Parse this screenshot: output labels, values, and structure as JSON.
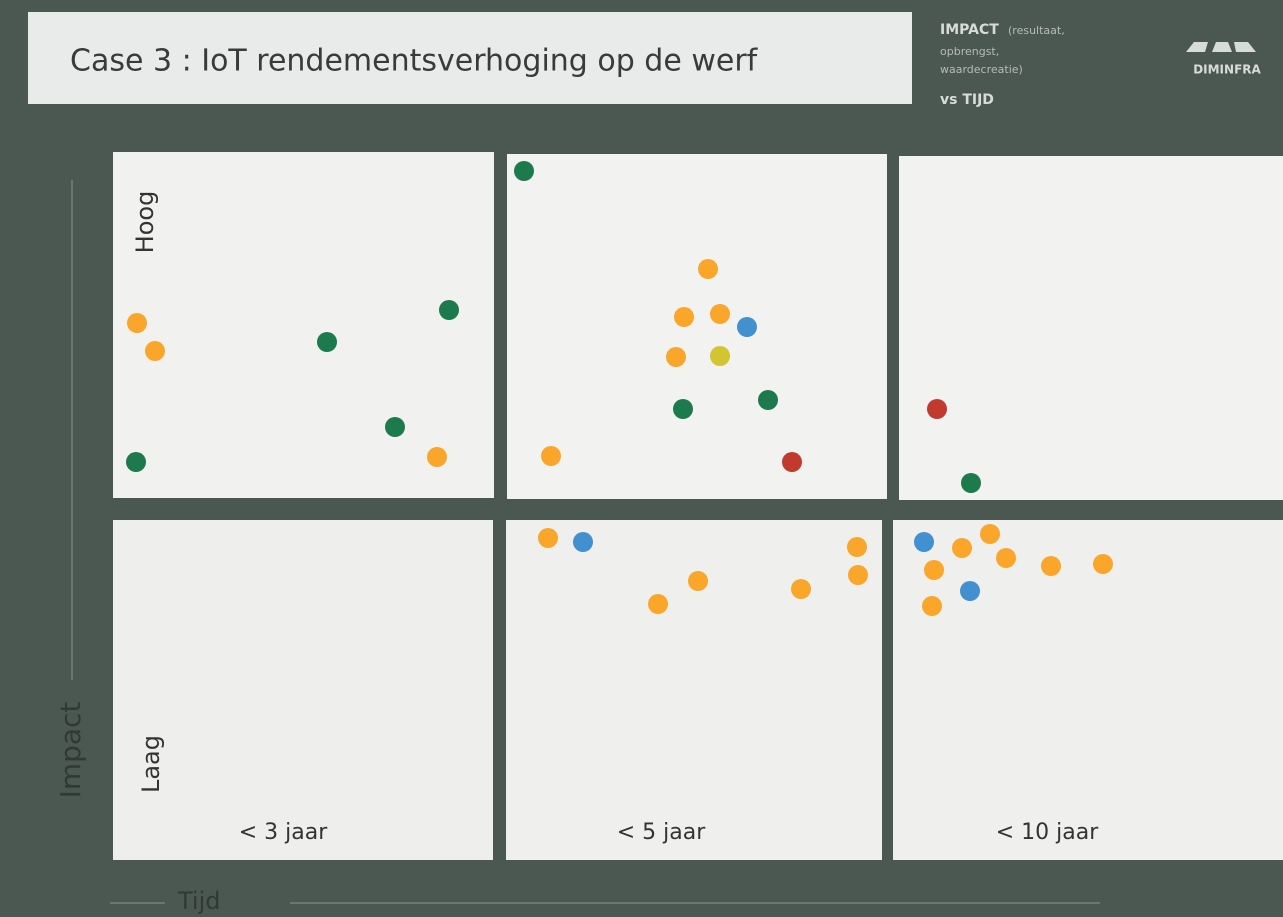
{
  "header": {
    "title": "Case 3 : IoT rendementsverhoging op de werf",
    "legend_heading": "IMPACT",
    "legend_note_1": "(resultaat,",
    "legend_note_2": "opbrengst,",
    "legend_note_3": "waardecreatie)",
    "legend_vs": "vs TIJD",
    "logo": "DIMINFRA"
  },
  "axes": {
    "y_label": "Impact",
    "y_high": "Hoog",
    "y_low": "Laag",
    "x_label": "Tijd",
    "columns": [
      "< 3 jaar",
      "< 5 jaar",
      "< 10 jaar"
    ]
  }
}
